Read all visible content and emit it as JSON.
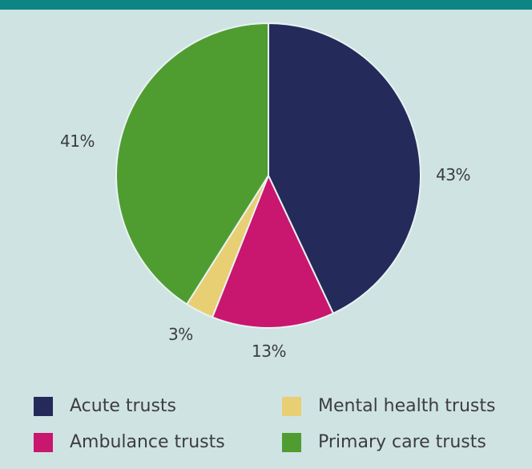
{
  "chart_data": {
    "type": "pie",
    "title": "",
    "slices": [
      {
        "label": "Acute trusts",
        "value": 43,
        "color": "#242a5a"
      },
      {
        "label": "Ambulance trusts",
        "value": 13,
        "color": "#c9166e"
      },
      {
        "label": "Mental health trusts",
        "value": 3,
        "color": "#e8cf74"
      },
      {
        "label": "Primary care trusts",
        "value": 41,
        "color": "#4f9d31"
      }
    ],
    "data_labels": [
      "43%",
      "13%",
      "3%",
      "41%"
    ],
    "legend": {
      "placement": "bottom",
      "entries": [
        "Acute trusts",
        "Mental health trusts",
        "Ambulance trusts",
        "Primary care trusts"
      ]
    }
  }
}
